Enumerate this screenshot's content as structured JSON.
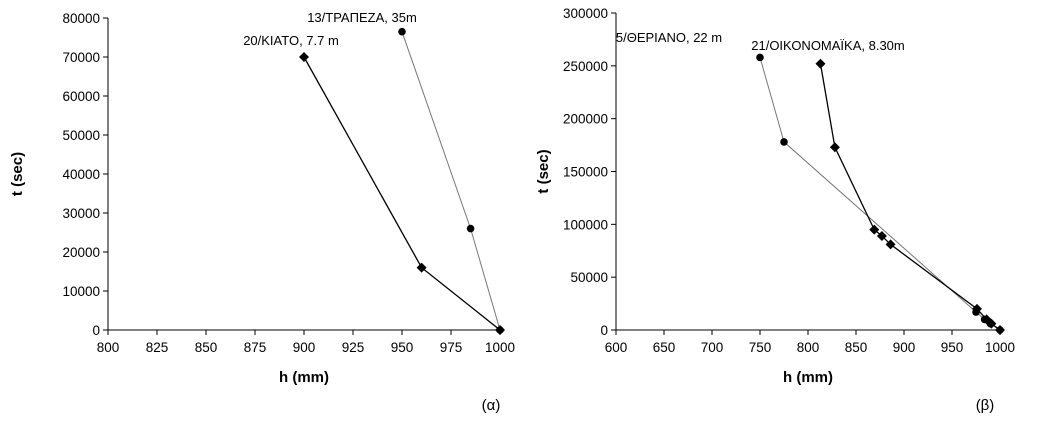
{
  "chart_data": [
    {
      "type": "line",
      "panel_label": "(α)",
      "xlabel": "h (mm)",
      "ylabel": "t (sec)",
      "xlim": [
        800,
        1000
      ],
      "ylim": [
        0,
        80000
      ],
      "xticks": [
        800,
        825,
        850,
        875,
        900,
        925,
        950,
        975,
        1000
      ],
      "yticks": [
        0,
        10000,
        20000,
        30000,
        40000,
        50000,
        60000,
        70000,
        80000
      ],
      "grid": false,
      "series": [
        {
          "label": "20/ΚΙΑΤΟ, 7.7 m",
          "marker": "diamond",
          "line_color": "#000000",
          "points": [
            [
              1000,
              0
            ],
            [
              960,
              16000
            ],
            [
              900,
              70000
            ]
          ]
        },
        {
          "label": "13/ΤΡΑΠΕΖΑ, 35m",
          "marker": "circle",
          "line_color": "#777777",
          "points": [
            [
              1000,
              0
            ],
            [
              985,
              26000
            ],
            [
              950,
              76500
            ]
          ]
        }
      ]
    },
    {
      "type": "line",
      "panel_label": "(β)",
      "xlabel": "h (mm)",
      "ylabel": "t (sec)",
      "xlim": [
        600,
        1000
      ],
      "ylim": [
        0,
        300000
      ],
      "xticks": [
        600,
        650,
        700,
        750,
        800,
        850,
        900,
        950,
        1000
      ],
      "yticks": [
        0,
        50000,
        100000,
        150000,
        200000,
        250000,
        300000
      ],
      "grid": false,
      "series": [
        {
          "label": "5/ΘΕΡΙΑΝΟ, 22 m",
          "marker": "circle",
          "line_color": "#777777",
          "points": [
            [
              1000,
              0
            ],
            [
              990,
              6000
            ],
            [
              984,
              10000
            ],
            [
              975,
              17000
            ],
            [
              775,
              178000
            ],
            [
              750,
              258000
            ]
          ]
        },
        {
          "label": "21/ΟΙΚΟΝΟΜΑΪΚΑ, 8.30m",
          "marker": "diamond",
          "line_color": "#000000",
          "points": [
            [
              1000,
              0
            ],
            [
              991,
              6000
            ],
            [
              986,
              10000
            ],
            [
              976,
              20000
            ],
            [
              886,
              81000
            ],
            [
              877,
              89000
            ],
            [
              869,
              95000
            ],
            [
              828,
              173000
            ],
            [
              813,
              252000
            ]
          ]
        }
      ]
    }
  ]
}
